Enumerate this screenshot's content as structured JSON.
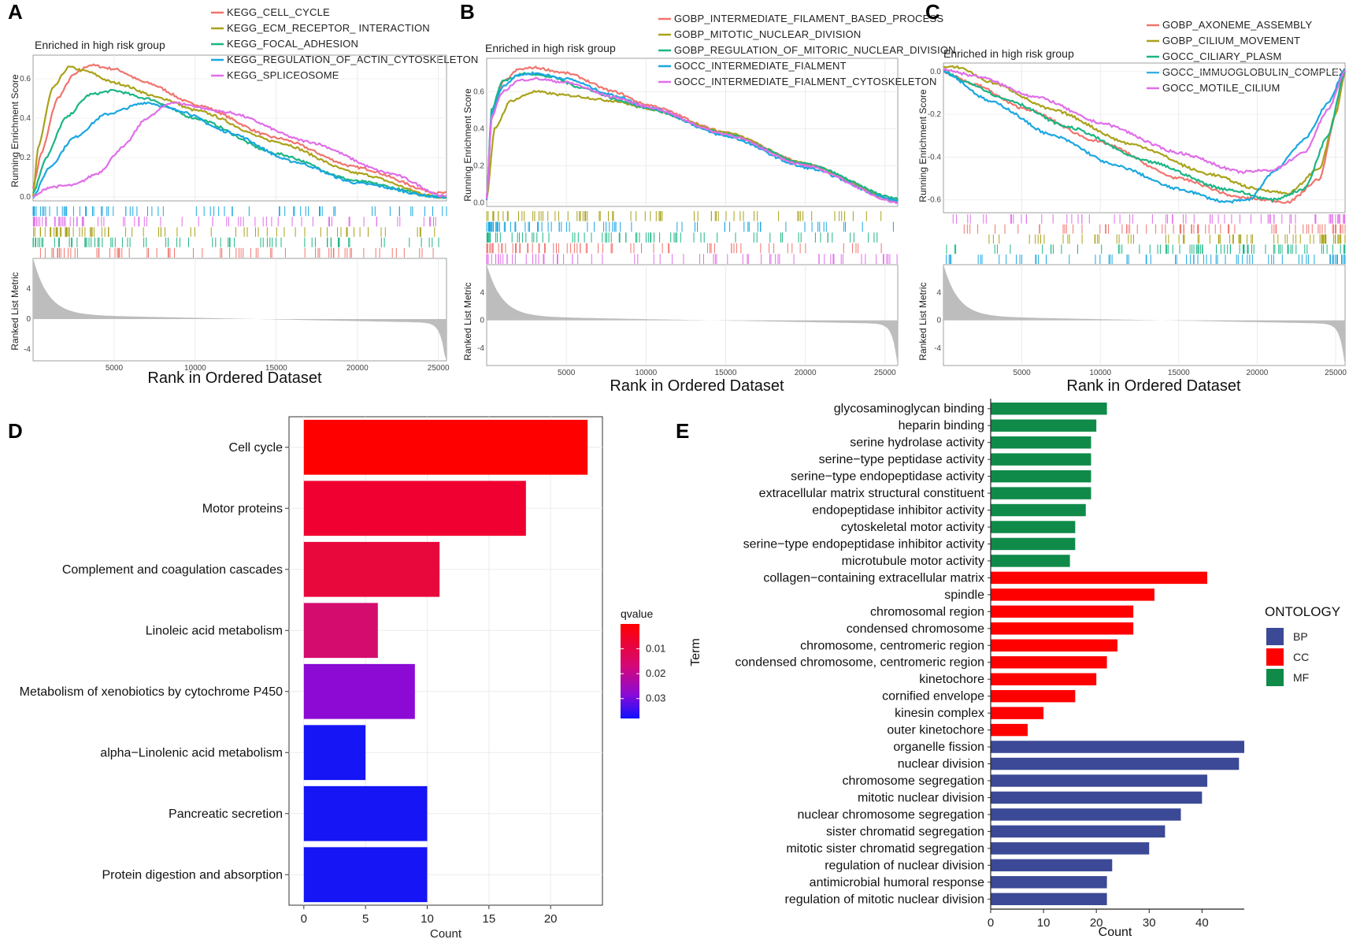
{
  "panels": {
    "A": {
      "letter": "A",
      "enriched_label": "Enriched in high risk group",
      "ylabel": "Running Enrichment Score",
      "metric_label": "Ranked List Metric",
      "xlabel": "Rank in Ordered Dataset",
      "legend": [
        "KEGG_CELL_CYCLE",
        "KEGG_ECM_RECEPTOR_ INTERACTION",
        "KEGG_FOCAL_ADHESION",
        "KEGG_REGULATION_OF_ACTIN_CYTOSKELETON",
        "KEGG_SPLICEOSOME"
      ]
    },
    "B": {
      "letter": "B",
      "enriched_label": "Enriched in high risk group",
      "ylabel": "Running Enrichment Score",
      "metric_label": "Ranked List Metric",
      "xlabel": "Rank in Ordered Dataset",
      "legend": [
        "GOBP_INTERMEDIATE_FILAMENT_BASED_PROCESS",
        "GOBP_MITOTIC_NUCLEAR_DIVISION",
        "GOBP_REGULATION_OF_MITORIC_NUCLEAR_DIVISION",
        "GOCC_INTERMEDIATE_FIALMENT",
        "GOCC_INTERMEDIATE_FIALMENT_CYTOSKELETON"
      ]
    },
    "C": {
      "letter": "C",
      "enriched_label": "Enriched in high risk group",
      "ylabel": "Running Enrichment Score",
      "metric_label": "Ranked List Metric",
      "xlabel": "Rank in Ordered Dataset",
      "legend": [
        "GOBP_AXONEME_ASSEMBLY",
        "GOBP_CILIUM_MOVEMENT",
        "GOCC_CILIARY_PLASM",
        "GOCC_IMMUOGLOBULIN_COMPLEX",
        "GOCC_MOTILE_CILIUM"
      ]
    },
    "D": {
      "letter": "D"
    },
    "E": {
      "letter": "E"
    }
  },
  "colors": {
    "series": [
      "#f0746e",
      "#a9a21a",
      "#1bb585",
      "#1aa7e0",
      "#e06ee8"
    ],
    "BP": "#3b4996",
    "CC": "#ff0000",
    "MF": "#0f8a49",
    "metric_fill": "#bdbdbd"
  },
  "chart_data": [
    {
      "id": "A",
      "type": "line",
      "title": "Enriched in high risk group",
      "xlabel": "Rank in Ordered Dataset",
      "ylabel": "Running Enrichment Score",
      "x_ticks": [
        5000,
        10000,
        15000,
        20000,
        25000
      ],
      "y_ticks": [
        0.0,
        0.2,
        0.4,
        0.6
      ],
      "y_tick_labels": [
        "0.0",
        "0.2",
        "0.4",
        "0.6"
      ],
      "xlim": [
        0,
        25500
      ],
      "ylim": [
        -0.02,
        0.72
      ],
      "metric_ticks": [
        4,
        0,
        -4
      ],
      "metric_tick_labels": [
        "4",
        "0",
        "-4"
      ],
      "metric_ylim": [
        -5.5,
        8
      ],
      "series": [
        {
          "name": "KEGG_CELL_CYCLE",
          "x": [
            0,
            500,
            1500,
            2500,
            3500,
            5000,
            7000,
            10000,
            15000,
            20000,
            25000
          ],
          "y": [
            0.05,
            0.22,
            0.5,
            0.62,
            0.67,
            0.65,
            0.58,
            0.47,
            0.3,
            0.15,
            0.02
          ]
        },
        {
          "name": "KEGG_ECM_RECEPTOR_ INTERACTION",
          "x": [
            0,
            300,
            1200,
            2200,
            3200,
            5000,
            8000,
            10000,
            15000,
            20000,
            25000
          ],
          "y": [
            0.0,
            0.25,
            0.55,
            0.66,
            0.64,
            0.58,
            0.5,
            0.44,
            0.28,
            0.12,
            0.0
          ]
        },
        {
          "name": "KEGG_FOCAL_ADHESION",
          "x": [
            0,
            800,
            2000,
            3500,
            5000,
            7000,
            10000,
            15000,
            20000,
            25000
          ],
          "y": [
            0.02,
            0.2,
            0.4,
            0.52,
            0.54,
            0.5,
            0.4,
            0.22,
            0.08,
            0.0
          ]
        },
        {
          "name": "KEGG_REGULATION_OF_ACTIN_CYTOSKELETON",
          "x": [
            0,
            1000,
            2500,
            4500,
            7000,
            9000,
            12000,
            16000,
            20000,
            25000
          ],
          "y": [
            0.0,
            0.15,
            0.3,
            0.42,
            0.48,
            0.44,
            0.33,
            0.18,
            0.07,
            0.0
          ]
        },
        {
          "name": "KEGG_SPLICEOSOME",
          "x": [
            0,
            1000,
            2500,
            4000,
            5500,
            7000,
            8500,
            12000,
            17000,
            22000,
            25500
          ],
          "y": [
            0.0,
            0.05,
            0.06,
            0.12,
            0.25,
            0.4,
            0.48,
            0.43,
            0.28,
            0.12,
            0.0
          ]
        }
      ]
    },
    {
      "id": "B",
      "type": "line",
      "title": "Enriched in high risk group",
      "xlabel": "Rank in Ordered Dataset",
      "ylabel": "Running Enrichment Score",
      "x_ticks": [
        5000,
        10000,
        15000,
        20000,
        25000
      ],
      "y_ticks": [
        0.0,
        0.2,
        0.4,
        0.6
      ],
      "y_tick_labels": [
        "0.0",
        "0.2",
        "0.4",
        "0.6"
      ],
      "xlim": [
        0,
        25800
      ],
      "ylim": [
        -0.02,
        0.78
      ],
      "metric_ticks": [
        4,
        0,
        -4
      ],
      "metric_tick_labels": [
        "4",
        "0",
        "-4"
      ],
      "metric_ylim": [
        -6.5,
        8
      ],
      "series": [
        {
          "name": "GOBP_INTERMEDIATE_FILAMENT_BASED_PROCESS",
          "x": [
            0,
            300,
            1000,
            2000,
            3000,
            5000,
            8000,
            10000,
            15000,
            20000,
            25800
          ],
          "y": [
            0.02,
            0.45,
            0.65,
            0.72,
            0.73,
            0.7,
            0.6,
            0.53,
            0.38,
            0.21,
            0.01
          ]
        },
        {
          "name": "GOBP_MITOTIC_NUCLEAR_DIVISION",
          "x": [
            0,
            500,
            1500,
            3000,
            5000,
            8000,
            10000,
            15000,
            20000,
            25800
          ],
          "y": [
            0.02,
            0.4,
            0.55,
            0.6,
            0.58,
            0.55,
            0.51,
            0.38,
            0.21,
            0.01
          ]
        },
        {
          "name": "GOBP_REGULATION_OF_MITORIC_NUCLEAR_DIVISION",
          "x": [
            0,
            300,
            1000,
            2500,
            4000,
            6000,
            8500,
            10000,
            15000,
            20000,
            25800
          ],
          "y": [
            0.02,
            0.5,
            0.66,
            0.7,
            0.68,
            0.62,
            0.55,
            0.51,
            0.37,
            0.21,
            0.02
          ]
        },
        {
          "name": "GOCC_INTERMEDIATE_FIALMENT",
          "x": [
            0,
            300,
            1000,
            2000,
            3000,
            5000,
            8000,
            10000,
            15000,
            20000,
            25800
          ],
          "y": [
            0.02,
            0.48,
            0.63,
            0.69,
            0.7,
            0.67,
            0.58,
            0.52,
            0.36,
            0.19,
            0.01
          ]
        },
        {
          "name": "GOCC_INTERMEDIATE_FIALMENT_CYTOSKELETON",
          "x": [
            0,
            300,
            1000,
            2000,
            3000,
            5000,
            8000,
            10000,
            15000,
            20000,
            25800
          ],
          "y": [
            0.02,
            0.46,
            0.6,
            0.66,
            0.67,
            0.65,
            0.57,
            0.52,
            0.37,
            0.2,
            0.0
          ]
        }
      ]
    },
    {
      "id": "C",
      "type": "line",
      "title": "Enriched in high risk group",
      "xlabel": "Rank in Ordered Dataset",
      "ylabel": "Running Enrichment Score",
      "x_ticks": [
        5000,
        10000,
        15000,
        20000,
        25000
      ],
      "y_ticks": [
        0.0,
        -0.2,
        -0.4,
        -0.6
      ],
      "y_tick_labels": [
        "0.0",
        "-0.2",
        "-0.4",
        "-0.6"
      ],
      "xlim": [
        0,
        25600
      ],
      "ylim": [
        -0.66,
        0.04
      ],
      "metric_ticks": [
        4,
        0,
        -4
      ],
      "metric_tick_labels": [
        "4",
        "0",
        "-4"
      ],
      "metric_ylim": [
        -6.5,
        8
      ],
      "series": [
        {
          "name": "GOBP_AXONEME_ASSEMBLY",
          "x": [
            0,
            2000,
            5000,
            10000,
            15000,
            19000,
            22000,
            24000,
            25000,
            25600
          ],
          "y": [
            0.0,
            -0.06,
            -0.17,
            -0.33,
            -0.5,
            -0.59,
            -0.61,
            -0.5,
            -0.2,
            0.0
          ]
        },
        {
          "name": "GOBP_CILIUM_MOVEMENT",
          "x": [
            0,
            1000,
            3000,
            7000,
            12000,
            17000,
            20000,
            22000,
            24000,
            25000,
            25600
          ],
          "y": [
            0.02,
            0.02,
            -0.05,
            -0.18,
            -0.34,
            -0.48,
            -0.55,
            -0.57,
            -0.45,
            -0.2,
            0.0
          ]
        },
        {
          "name": "GOCC_CILIARY_PLASM",
          "x": [
            0,
            1500,
            4000,
            8000,
            13000,
            18000,
            21000,
            23000,
            24500,
            25600
          ],
          "y": [
            0.0,
            -0.05,
            -0.13,
            -0.26,
            -0.42,
            -0.55,
            -0.6,
            -0.55,
            -0.3,
            0.0
          ]
        },
        {
          "name": "GOCC_IMMUOGLOBULIN_COMPLEX",
          "x": [
            0,
            3000,
            7000,
            11000,
            15000,
            18000,
            19500,
            21000,
            23000,
            24500,
            25600
          ],
          "y": [
            0.0,
            -0.14,
            -0.3,
            -0.44,
            -0.55,
            -0.61,
            -0.6,
            -0.47,
            -0.32,
            -0.15,
            0.01
          ]
        },
        {
          "name": "GOCC_MOTILE_CILIUM",
          "x": [
            0,
            2000,
            6000,
            10000,
            15000,
            19000,
            21000,
            23000,
            24500,
            25600
          ],
          "y": [
            0.01,
            -0.02,
            -0.12,
            -0.24,
            -0.38,
            -0.47,
            -0.46,
            -0.38,
            -0.18,
            0.0
          ]
        }
      ]
    },
    {
      "id": "D",
      "type": "bar",
      "orientation": "horizontal",
      "categories": [
        "Cell cycle",
        "Motor proteins",
        "Complement and coagulation cascades",
        "Linoleic acid metabolism",
        "Metabolism of xenobiotics by cytochrome P450",
        "alpha−Linolenic acid metabolism",
        "Pancreatic secretion",
        "Protein digestion and absorption"
      ],
      "values": [
        23,
        18,
        11,
        6,
        9,
        5,
        10,
        10
      ],
      "qvalues": [
        0.001,
        0.004,
        0.007,
        0.012,
        0.024,
        0.036,
        0.036,
        0.036
      ],
      "bar_colors": [
        "#ff0000",
        "#f00030",
        "#e8083c",
        "#d40c6e",
        "#8c0ad4",
        "#1515f5",
        "#1515f5",
        "#1515f5"
      ],
      "xlabel": "Count",
      "x_ticks": [
        0,
        5,
        10,
        15,
        20
      ],
      "xlim": [
        -1.2,
        24.2
      ],
      "legend_title": "qvalue",
      "legend_ticks": [
        "0.01",
        "0.02",
        "0.03"
      ],
      "legend_range": [
        0.0,
        0.038
      ]
    },
    {
      "id": "E",
      "type": "bar",
      "orientation": "horizontal",
      "ylabel": "Term",
      "xlabel": "Count",
      "x_ticks": [
        0,
        10,
        20,
        30,
        40
      ],
      "xlim": [
        0,
        48
      ],
      "legend_title": "ONTOLOGY",
      "legend": [
        "BP",
        "CC",
        "MF"
      ],
      "categories": [
        "glycosaminoglycan binding",
        "heparin binding",
        "serine hydrolase activity",
        "serine−type peptidase activity",
        "serine−type endopeptidase activity",
        "extracellular matrix structural constituent",
        "endopeptidase inhibitor activity",
        "cytoskeletal motor activity",
        "serine−type endopeptidase inhibitor activity",
        "microtubule motor activity",
        "collagen−containing extracellular matrix",
        "spindle",
        "chromosomal region",
        "condensed chromosome",
        "chromosome, centromeric region",
        "condensed chromosome, centromeric region",
        "kinetochore",
        "cornified envelope",
        "kinesin complex",
        "outer kinetochore",
        "organelle fission",
        "nuclear division",
        "chromosome segregation",
        "mitotic nuclear division",
        "nuclear chromosome segregation",
        "sister chromatid segregation",
        "mitotic sister chromatid segregation",
        "regulation of nuclear division",
        "antimicrobial humoral response",
        "regulation of mitotic nuclear division"
      ],
      "values": [
        22,
        20,
        19,
        19,
        19,
        19,
        18,
        16,
        16,
        15,
        41,
        31,
        27,
        27,
        24,
        22,
        20,
        16,
        10,
        7,
        48,
        47,
        41,
        40,
        36,
        33,
        30,
        23,
        22,
        22
      ],
      "ontology": [
        "MF",
        "MF",
        "MF",
        "MF",
        "MF",
        "MF",
        "MF",
        "MF",
        "MF",
        "MF",
        "CC",
        "CC",
        "CC",
        "CC",
        "CC",
        "CC",
        "CC",
        "CC",
        "CC",
        "CC",
        "BP",
        "BP",
        "BP",
        "BP",
        "BP",
        "BP",
        "BP",
        "BP",
        "BP",
        "BP"
      ]
    }
  ]
}
